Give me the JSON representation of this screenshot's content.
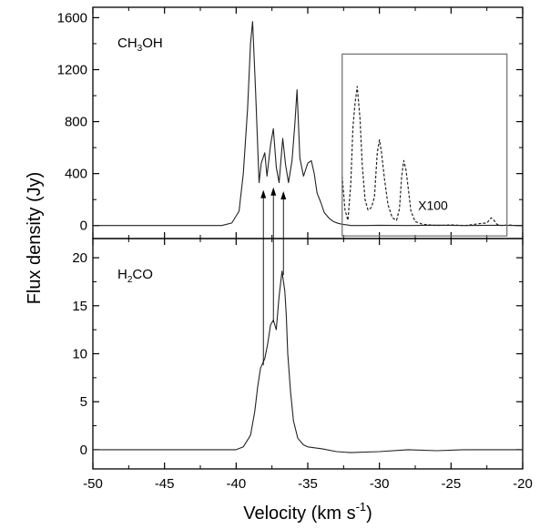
{
  "chart_data": {
    "type": "line",
    "xlabel": "Velocity (km s⁻¹)",
    "ylabel": "Flux density (Jy)",
    "xlim": [
      -50,
      -20
    ],
    "xticks": [
      -50,
      -45,
      -40,
      -35,
      -30,
      -25,
      -20
    ],
    "grid": false,
    "panels": [
      {
        "label": "CH₃OH",
        "ylim": [
          -100,
          1680
        ],
        "yticks": [
          0,
          400,
          800,
          1200,
          1600
        ],
        "series": [
          {
            "style": "solid",
            "x": [
              -50,
              -41,
              -40.3,
              -39.8,
              -39.5,
              -39.2,
              -39.0,
              -38.85,
              -38.65,
              -38.4,
              -38.25,
              -38.0,
              -37.85,
              -37.6,
              -37.4,
              -37.2,
              -37.0,
              -36.75,
              -36.55,
              -36.35,
              -36.1,
              -35.9,
              -35.75,
              -35.55,
              -35.3,
              -35.0,
              -34.75,
              -34.55,
              -34.35,
              -34.1,
              -33.85,
              -33.5,
              -33.2,
              -32.9,
              -32.6,
              -32.3,
              -32,
              -31,
              -30,
              -28,
              -26,
              -24,
              -22,
              -20
            ],
            "y": [
              0,
              0,
              20,
              110,
              400,
              900,
              1400,
              1570,
              1050,
              330,
              480,
              560,
              380,
              620,
              745,
              450,
              330,
              670,
              470,
              330,
              500,
              780,
              1045,
              520,
              380,
              480,
              500,
              400,
              250,
              180,
              100,
              55,
              30,
              18,
              10,
              6,
              0,
              0,
              2,
              0,
              3,
              0,
              2,
              0
            ]
          },
          {
            "name": "X100",
            "style": "dashed",
            "x": [
              -32.6,
              -32.4,
              -32.2,
              -32.0,
              -31.85,
              -31.7,
              -31.55,
              -31.35,
              -31.2,
              -31.0,
              -30.8,
              -30.55,
              -30.35,
              -30.15,
              -30.0,
              -29.85,
              -29.65,
              -29.4,
              -29.1,
              -28.8,
              -28.6,
              -28.45,
              -28.3,
              -28.15,
              -28.0,
              -27.8,
              -27.5,
              -27.0,
              -26,
              -25,
              -24,
              -23,
              -22.5,
              -22.2,
              -22.0,
              -21.8,
              -21.5,
              -21,
              -20.5,
              -20
            ],
            "y": [
              380,
              120,
              40,
              320,
              760,
              940,
              1070,
              820,
              470,
              200,
              120,
              140,
              220,
              560,
              660,
              560,
              360,
              160,
              60,
              40,
              130,
              380,
              500,
              430,
              300,
              110,
              30,
              10,
              0,
              5,
              0,
              15,
              20,
              60,
              40,
              10,
              0,
              5,
              0,
              0
            ]
          }
        ],
        "annotations": [
          "X100"
        ],
        "inset_box": {
          "x": [
            -32.6,
            -21.1
          ],
          "y": [
            -80,
            1320
          ]
        }
      },
      {
        "label": "H₂CO",
        "ylim": [
          -2,
          22
        ],
        "yticks": [
          0,
          5,
          10,
          15,
          20
        ],
        "series": [
          {
            "style": "solid",
            "x": [
              -50,
              -45,
              -42,
              -40,
              -39.5,
              -39.0,
              -38.7,
              -38.5,
              -38.3,
              -38.0,
              -37.8,
              -37.6,
              -37.4,
              -37.2,
              -37.0,
              -36.8,
              -36.6,
              -36.5,
              -36.4,
              -36.2,
              -36.0,
              -35.7,
              -35.3,
              -35,
              -34,
              -33,
              -32,
              -30,
              -28,
              -26,
              -24,
              -22,
              -20
            ],
            "y": [
              0,
              0,
              0,
              0,
              0.3,
              1.5,
              4.0,
              6.5,
              8.5,
              9.5,
              11.0,
              13.0,
              13.5,
              12.5,
              16.0,
              18.6,
              16.5,
              14.0,
              10.0,
              6.0,
              3.0,
              1.2,
              0.5,
              0.3,
              0.1,
              -0.2,
              -0.3,
              -0.2,
              0,
              -0.1,
              0,
              0,
              0
            ]
          }
        ]
      }
    ],
    "arrows_at_velocity": [
      -38.1,
      -37.4,
      -36.7
    ]
  }
}
